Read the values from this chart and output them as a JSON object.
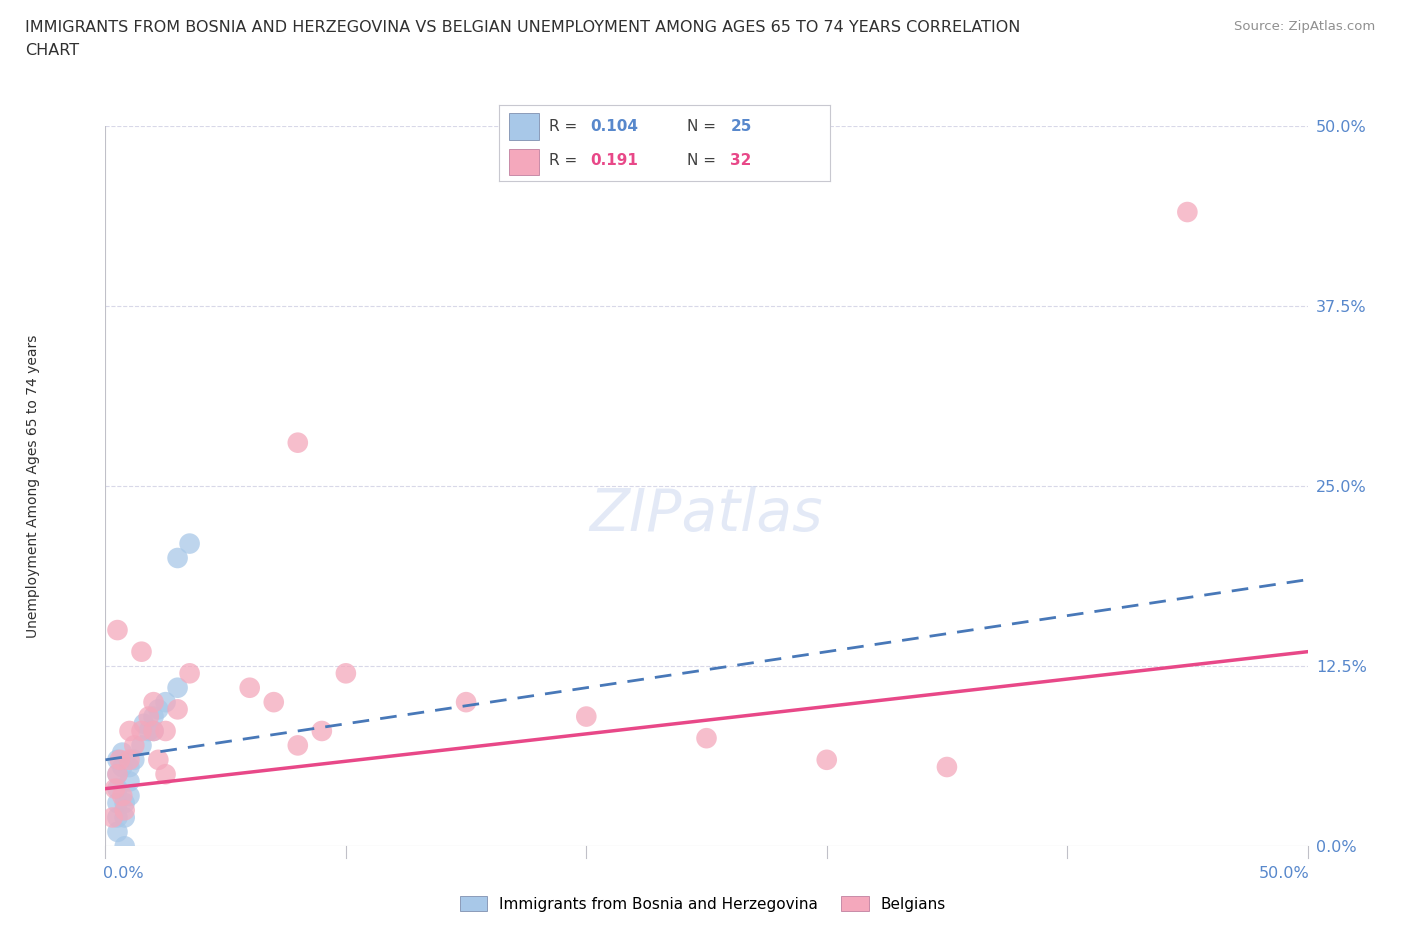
{
  "title": "IMMIGRANTS FROM BOSNIA AND HERZEGOVINA VS BELGIAN UNEMPLOYMENT AMONG AGES 65 TO 74 YEARS CORRELATION\nCHART",
  "source": "Source: ZipAtlas.com",
  "ylabel": "Unemployment Among Ages 65 to 74 years",
  "ytick_labels": [
    "0.0%",
    "12.5%",
    "25.0%",
    "37.5%",
    "50.0%"
  ],
  "ytick_values": [
    0.0,
    0.125,
    0.25,
    0.375,
    0.5
  ],
  "xlim": [
    0.0,
    0.5
  ],
  "ylim": [
    0.0,
    0.5
  ],
  "blue_R": "0.104",
  "blue_N": "25",
  "pink_R": "0.191",
  "pink_N": "32",
  "blue_scatter_color": "#a8c8e8",
  "pink_scatter_color": "#f4a8bc",
  "blue_line_color": "#4878b8",
  "pink_line_color": "#e84888",
  "blue_scatter_x": [
    0.005,
    0.005,
    0.005,
    0.005,
    0.005,
    0.007,
    0.007,
    0.008,
    0.008,
    0.01,
    0.01,
    0.01,
    0.012,
    0.015,
    0.016,
    0.018,
    0.02,
    0.02,
    0.022,
    0.025,
    0.03,
    0.03,
    0.035,
    0.005,
    0.008
  ],
  "blue_scatter_y": [
    0.02,
    0.03,
    0.04,
    0.05,
    0.06,
    0.055,
    0.065,
    0.03,
    0.0,
    0.045,
    0.055,
    0.035,
    0.06,
    0.07,
    0.085,
    0.08,
    0.09,
    0.08,
    0.095,
    0.1,
    0.11,
    0.2,
    0.21,
    0.01,
    0.02
  ],
  "pink_scatter_x": [
    0.003,
    0.004,
    0.005,
    0.006,
    0.007,
    0.008,
    0.01,
    0.01,
    0.012,
    0.015,
    0.018,
    0.02,
    0.022,
    0.025,
    0.025,
    0.03,
    0.035,
    0.06,
    0.07,
    0.08,
    0.09,
    0.1,
    0.15,
    0.2,
    0.25,
    0.3,
    0.35,
    0.005,
    0.015,
    0.02,
    0.08,
    0.45
  ],
  "pink_scatter_y": [
    0.02,
    0.04,
    0.05,
    0.06,
    0.035,
    0.025,
    0.06,
    0.08,
    0.07,
    0.08,
    0.09,
    0.1,
    0.06,
    0.08,
    0.05,
    0.095,
    0.12,
    0.11,
    0.1,
    0.07,
    0.08,
    0.12,
    0.1,
    0.09,
    0.075,
    0.06,
    0.055,
    0.15,
    0.135,
    0.08,
    0.28,
    0.44
  ],
  "blue_line_x": [
    0.0,
    0.5
  ],
  "blue_line_y": [
    0.06,
    0.185
  ],
  "pink_line_x": [
    0.0,
    0.5
  ],
  "pink_line_y": [
    0.04,
    0.135
  ],
  "grid_color": "#d8d8e8",
  "background_color": "#ffffff",
  "title_color": "#303030",
  "axis_label_color": "#5888cc",
  "source_color": "#909090",
  "legend_blue_color": "#a8c8e8",
  "legend_pink_color": "#f4a8bc"
}
